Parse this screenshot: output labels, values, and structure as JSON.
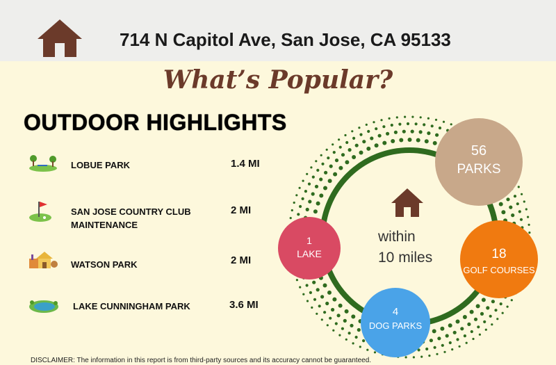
{
  "header": {
    "address": "714 N Capitol Ave, San Jose, CA 95133"
  },
  "title": "What’s Popular?",
  "section_title": "OUTDOOR HIGHLIGHTS",
  "places": [
    {
      "name": "LOBUE PARK",
      "distance": "1.4 MI"
    },
    {
      "name": "SAN JOSE COUNTRY CLUB MAINTENANCE",
      "distance": "2 MI"
    },
    {
      "name": "WATSON PARK",
      "distance": "2 MI"
    },
    {
      "name": "LAKE CUNNINGHAM PARK",
      "distance": "3.6 MI"
    }
  ],
  "summary": {
    "center_line1": "within",
    "center_line2": "10 miles",
    "parks": {
      "count": "56",
      "label": "PARKS"
    },
    "golf": {
      "count": "18",
      "label": "GOLF COURSES"
    },
    "dog": {
      "count": "4",
      "label": "DOG PARKS"
    },
    "lake": {
      "count": "1",
      "label": "LAKE"
    }
  },
  "colors": {
    "ring": "#2f6b1f",
    "parks": "#c8a88a",
    "golf": "#f07a10",
    "dog": "#4aa3e8",
    "lake": "#d94a63",
    "house": "#6b3a2a"
  },
  "disclaimer": "DISCLAIMER: The information in this report is from third-party sources and its accuracy cannot be guaranteed."
}
